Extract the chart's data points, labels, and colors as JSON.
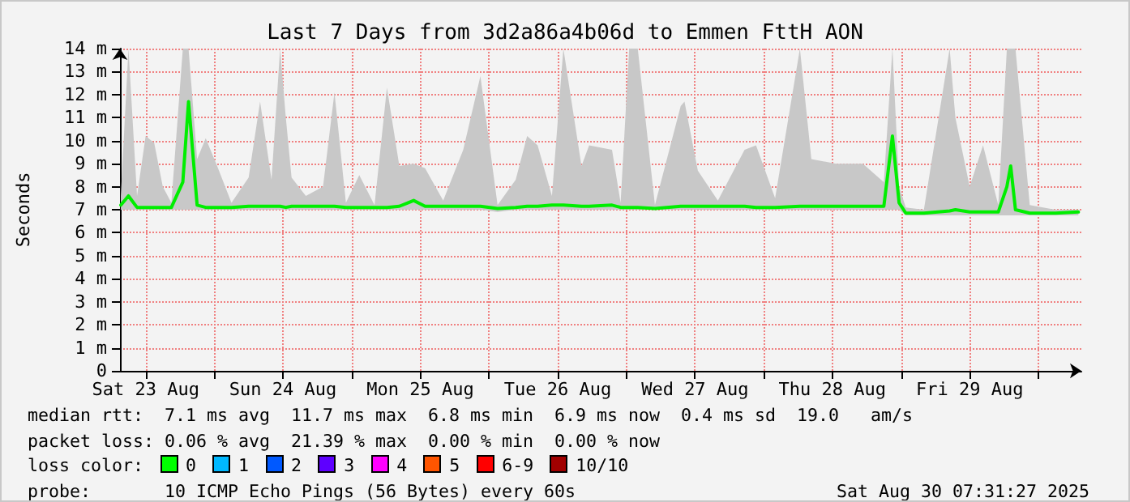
{
  "chart_data": {
    "type": "line",
    "title": "Last 7 Days from 3d2a86a4b06d to Emmen FttH AON",
    "ylabel": "Seconds",
    "annotations": [
      "median rtt:  7.1 ms avg  11.7 ms max  6.8 ms min  6.9 ms now  0.4 ms sd  19.0   am/s",
      "packet loss: 0.06 % avg  21.39 % max  0.00 % min  0.00 % now",
      "loss color:",
      "0",
      "1",
      "2",
      "3",
      "4",
      "5",
      "6-9",
      "10/10",
      "probe:       10 ICMP Echo Pings (56 Bytes) every 60s",
      "Sat Aug 30 07:31:27 2025"
    ],
    "x": [
      "2025-08-23T07:40",
      "2025-08-23T09:00",
      "2025-08-23T10:30",
      "2025-08-23T12:00",
      "2025-08-23T13:30",
      "2025-08-23T15:00",
      "2025-08-23T16:30",
      "2025-08-23T18:30",
      "2025-08-23T19:30",
      "2025-08-23T21:00",
      "2025-08-23T22:30",
      "2025-08-24T00:30",
      "2025-08-24T03:00",
      "2025-08-24T06:00",
      "2025-08-24T08:00",
      "2025-08-24T10:00",
      "2025-08-24T11:30",
      "2025-08-24T12:30",
      "2025-08-24T13:30",
      "2025-08-24T16:00",
      "2025-08-24T19:00",
      "2025-08-24T21:00",
      "2025-08-24T23:00",
      "2025-08-25T01:20",
      "2025-08-25T04:00",
      "2025-08-25T06:10",
      "2025-08-25T08:20",
      "2025-08-25T10:50",
      "2025-08-25T12:50",
      "2025-08-25T16:00",
      "2025-08-25T19:30",
      "2025-08-25T22:30",
      "2025-08-26T01:30",
      "2025-08-26T04:40",
      "2025-08-26T06:40",
      "2025-08-26T08:30",
      "2025-08-26T11:00",
      "2025-08-26T13:00",
      "2025-08-26T16:10",
      "2025-08-26T17:30",
      "2025-08-26T21:30",
      "2025-08-26T23:00",
      "2025-08-27T00:30",
      "2025-08-27T02:00",
      "2025-08-27T05:00",
      "2025-08-27T09:30",
      "2025-08-27T10:10",
      "2025-08-27T12:30",
      "2025-08-27T16:00",
      "2025-08-27T20:40",
      "2025-08-27T22:40",
      "2025-08-28T02:00",
      "2025-08-28T06:20",
      "2025-08-28T08:20",
      "2025-08-28T12:40",
      "2025-08-28T17:20",
      "2025-08-28T21:00",
      "2025-08-28T22:30",
      "2025-08-28T23:40",
      "2025-08-29T00:50",
      "2025-08-29T04:00",
      "2025-08-29T08:30",
      "2025-08-29T09:30",
      "2025-08-29T12:00",
      "2025-08-29T14:20",
      "2025-08-29T17:00",
      "2025-08-29T18:30",
      "2025-08-29T19:10",
      "2025-08-29T20:00",
      "2025-08-29T22:30",
      "2025-08-30T03:00",
      "2025-08-30T07:00"
    ],
    "series": [
      {
        "color": "#00ee00",
        "values": [
          7.2,
          7.6,
          7.1,
          7.1,
          7.1,
          7.1,
          7.1,
          8.2,
          11.7,
          7.2,
          7.1,
          7.1,
          7.1,
          7.15,
          7.15,
          7.15,
          7.15,
          7.1,
          7.15,
          7.15,
          7.15,
          7.15,
          7.1,
          7.1,
          7.1,
          7.1,
          7.15,
          7.4,
          7.15,
          7.15,
          7.15,
          7.15,
          7.05,
          7.1,
          7.15,
          7.15,
          7.2,
          7.2,
          7.15,
          7.15,
          7.2,
          7.1,
          7.1,
          7.1,
          7.05,
          7.15,
          7.15,
          7.15,
          7.15,
          7.15,
          7.1,
          7.1,
          7.15,
          7.15,
          7.15,
          7.15,
          7.15,
          10.2,
          7.3,
          6.85,
          6.85,
          6.95,
          7.0,
          6.9,
          6.9,
          6.9,
          8.0,
          8.9,
          7.0,
          6.85,
          6.85,
          6.9
        ],
        "lower": [
          7.0,
          7.0,
          7.0,
          7.0,
          7.0,
          7.0,
          7.0,
          7.0,
          7.0,
          7.0,
          7.0,
          7.0,
          7.0,
          7.0,
          7.0,
          7.0,
          7.0,
          7.0,
          7.0,
          7.0,
          7.0,
          7.0,
          7.0,
          7.0,
          7.0,
          7.0,
          7.0,
          7.0,
          7.0,
          7.0,
          7.0,
          7.0,
          6.9,
          7.0,
          7.0,
          7.0,
          7.0,
          7.0,
          7.0,
          7.0,
          7.0,
          7.0,
          7.0,
          7.0,
          7.0,
          7.0,
          7.0,
          7.0,
          7.0,
          7.0,
          7.0,
          7.0,
          7.0,
          7.0,
          7.0,
          7.0,
          7.0,
          7.0,
          7.0,
          6.75,
          6.75,
          6.75,
          6.75,
          6.75,
          6.75,
          6.75,
          6.75,
          6.75,
          6.75,
          6.75,
          6.75,
          6.75
        ],
        "upper": [
          7.6,
          14,
          7.6,
          10.2,
          9.9,
          8.0,
          7.3,
          14,
          14,
          9.2,
          10.1,
          8.9,
          7.3,
          8.4,
          11.7,
          8.3,
          14,
          11.0,
          8.4,
          7.6,
          8.0,
          12.1,
          7.3,
          8.5,
          7.2,
          12.3,
          8.9,
          9.0,
          8.8,
          7.4,
          9.6,
          12.8,
          7.2,
          8.3,
          10.2,
          9.8,
          7.6,
          14,
          8.9,
          9.8,
          9.6,
          7.3,
          14,
          14,
          7.2,
          11.5,
          11.7,
          8.7,
          7.4,
          9.6,
          9.8,
          7.5,
          14,
          9.2,
          9.0,
          9.0,
          8.2,
          14,
          8.0,
          7.1,
          7.0,
          14,
          11.0,
          8.0,
          9.8,
          7.2,
          14,
          14,
          14,
          7.2,
          7.0,
          7.0
        ]
      }
    ],
    "xlim": [
      "2025-08-23T07:31",
      "2025-08-30T07:31"
    ],
    "xticks": [
      {
        "value": "2025-08-23T12:00",
        "label": "Sat 23 Aug"
      },
      {
        "value": "2025-08-24T00:00",
        "label": null
      },
      {
        "value": "2025-08-24T12:00",
        "label": "Sun 24 Aug"
      },
      {
        "value": "2025-08-25T00:00",
        "label": null
      },
      {
        "value": "2025-08-25T12:00",
        "label": "Mon 25 Aug"
      },
      {
        "value": "2025-08-26T00:00",
        "label": null
      },
      {
        "value": "2025-08-26T12:00",
        "label": "Tue 26 Aug"
      },
      {
        "value": "2025-08-27T00:00",
        "label": null
      },
      {
        "value": "2025-08-27T12:00",
        "label": "Wed 27 Aug"
      },
      {
        "value": "2025-08-28T00:00",
        "label": null
      },
      {
        "value": "2025-08-28T12:00",
        "label": "Thu 28 Aug"
      },
      {
        "value": "2025-08-29T00:00",
        "label": null
      },
      {
        "value": "2025-08-29T12:00",
        "label": "Fri 29 Aug"
      },
      {
        "value": "2025-08-30T00:00",
        "label": null
      }
    ],
    "ylim": [
      0,
      14
    ],
    "yticks": [
      0,
      {
        "value": 1,
        "label": "1 m"
      },
      {
        "value": 2,
        "label": "2 m"
      },
      {
        "value": 3,
        "label": "3 m"
      },
      {
        "value": 4,
        "label": "4 m"
      },
      {
        "value": 5,
        "label": "5 m"
      },
      {
        "value": 6,
        "label": "6 m"
      },
      {
        "value": 7,
        "label": "7 m"
      },
      {
        "value": 8,
        "label": "8 m"
      },
      {
        "value": 9,
        "label": "9 m"
      },
      {
        "value": 10,
        "label": "10 m"
      },
      {
        "value": 11,
        "label": "11 m"
      },
      {
        "value": 12,
        "label": "12 m"
      },
      {
        "value": 13,
        "label": "13 m"
      },
      {
        "value": 14,
        "label": "14 m"
      }
    ],
    "grid": true,
    "line_style": "solid"
  }
}
